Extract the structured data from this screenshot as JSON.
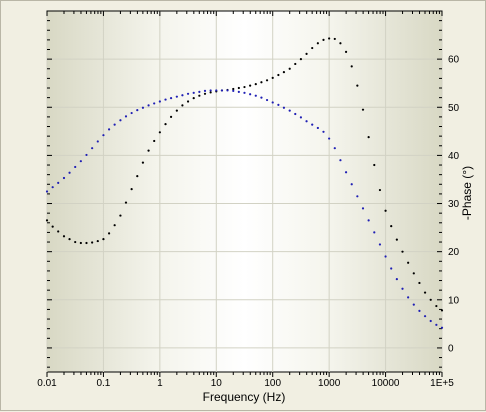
{
  "chart_data": {
    "type": "scatter",
    "title": "",
    "xlabel": "Frequency (Hz)",
    "ylabel": "-Phase (°)",
    "x_scale": "log",
    "xlim": [
      0.01,
      100000
    ],
    "ylim": [
      -5,
      70
    ],
    "x_ticks": [
      0.01,
      0.1,
      1,
      10,
      100,
      1000,
      10000,
      100000
    ],
    "x_tick_labels": [
      "0.01",
      "0.1",
      "1",
      "10",
      "100",
      "1000",
      "10000",
      "1E+5"
    ],
    "y_ticks": [
      0,
      10,
      20,
      30,
      40,
      50,
      60
    ],
    "y_tick_labels": [
      "0",
      "10",
      "20",
      "30",
      "40",
      "50",
      "60"
    ],
    "y_axis_side": "right",
    "grid": true,
    "legend": "none",
    "series": [
      {
        "color": "#000000",
        "points": [
          [
            0.01,
            26.5
          ],
          [
            0.0126,
            25.2
          ],
          [
            0.0158,
            24.2
          ],
          [
            0.02,
            23.2
          ],
          [
            0.0251,
            22.6
          ],
          [
            0.0316,
            22.0
          ],
          [
            0.0398,
            21.8
          ],
          [
            0.0501,
            21.8
          ],
          [
            0.0631,
            21.9
          ],
          [
            0.0794,
            22.2
          ],
          [
            0.1,
            22.6
          ],
          [
            0.126,
            23.8
          ],
          [
            0.158,
            25.5
          ],
          [
            0.2,
            27.5
          ],
          [
            0.251,
            30.2
          ],
          [
            0.316,
            33.0
          ],
          [
            0.398,
            35.7
          ],
          [
            0.501,
            38.5
          ],
          [
            0.631,
            41.0
          ],
          [
            0.794,
            43.0
          ],
          [
            1,
            44.8
          ],
          [
            1.26,
            46.5
          ],
          [
            1.58,
            48.0
          ],
          [
            2,
            49.3
          ],
          [
            2.51,
            50.4
          ],
          [
            3.16,
            51.2
          ],
          [
            3.98,
            51.9
          ],
          [
            5.01,
            52.4
          ],
          [
            6.31,
            52.8
          ],
          [
            7.94,
            53.1
          ],
          [
            10,
            53.3
          ],
          [
            12.6,
            53.5
          ],
          [
            15.8,
            53.6
          ],
          [
            20,
            53.8
          ],
          [
            25.1,
            54.0
          ],
          [
            31.6,
            54.2
          ],
          [
            39.8,
            54.5
          ],
          [
            50.1,
            54.8
          ],
          [
            63.1,
            55.2
          ],
          [
            79.4,
            55.6
          ],
          [
            100,
            56.1
          ],
          [
            126,
            56.7
          ],
          [
            158,
            57.3
          ],
          [
            200,
            58.0
          ],
          [
            251,
            59.0
          ],
          [
            316,
            60.0
          ],
          [
            398,
            61.1
          ],
          [
            501,
            62.3
          ],
          [
            631,
            63.3
          ],
          [
            794,
            64.0
          ],
          [
            1000,
            64.3
          ],
          [
            1259,
            64.2
          ],
          [
            1585,
            63.3
          ],
          [
            1995,
            61.5
          ],
          [
            2512,
            58.5
          ],
          [
            3162,
            54.5
          ],
          [
            3981,
            49.5
          ],
          [
            5012,
            43.8
          ],
          [
            6310,
            38.0
          ],
          [
            7943,
            32.8
          ],
          [
            10000,
            28.5
          ],
          [
            12589,
            25.3
          ],
          [
            15849,
            22.5
          ],
          [
            19953,
            20.0
          ],
          [
            25119,
            17.7
          ],
          [
            31623,
            15.5
          ],
          [
            39811,
            13.5
          ],
          [
            50119,
            11.5
          ],
          [
            63096,
            10.0
          ],
          [
            79433,
            8.7
          ],
          [
            100000,
            7.8
          ]
        ]
      },
      {
        "color": "#1f1fb4",
        "points": [
          [
            0.01,
            32.5
          ],
          [
            0.0126,
            33.4
          ],
          [
            0.0158,
            34.3
          ],
          [
            0.02,
            35.3
          ],
          [
            0.0251,
            36.4
          ],
          [
            0.0316,
            37.6
          ],
          [
            0.0398,
            38.8
          ],
          [
            0.0501,
            40.1
          ],
          [
            0.0631,
            41.5
          ],
          [
            0.0794,
            42.9
          ],
          [
            0.1,
            44.2
          ],
          [
            0.126,
            45.4
          ],
          [
            0.158,
            46.4
          ],
          [
            0.2,
            47.3
          ],
          [
            0.251,
            48.1
          ],
          [
            0.316,
            48.8
          ],
          [
            0.398,
            49.4
          ],
          [
            0.501,
            49.9
          ],
          [
            0.631,
            50.4
          ],
          [
            0.794,
            50.8
          ],
          [
            1,
            51.2
          ],
          [
            1.26,
            51.6
          ],
          [
            1.58,
            51.9
          ],
          [
            2,
            52.2
          ],
          [
            2.51,
            52.5
          ],
          [
            3.16,
            52.8
          ],
          [
            3.98,
            53.0
          ],
          [
            5.01,
            53.2
          ],
          [
            6.31,
            53.4
          ],
          [
            7.94,
            53.5
          ],
          [
            10,
            53.5
          ],
          [
            12.6,
            53.5
          ],
          [
            15.8,
            53.5
          ],
          [
            20,
            53.4
          ],
          [
            25.1,
            53.2
          ],
          [
            31.6,
            53.0
          ],
          [
            39.8,
            52.7
          ],
          [
            50.1,
            52.4
          ],
          [
            63.1,
            52.0
          ],
          [
            79.4,
            51.5
          ],
          [
            100,
            51.0
          ],
          [
            126,
            50.5
          ],
          [
            158,
            49.9
          ],
          [
            200,
            49.3
          ],
          [
            251,
            48.6
          ],
          [
            316,
            47.9
          ],
          [
            398,
            47.1
          ],
          [
            501,
            46.4
          ],
          [
            631,
            45.7
          ],
          [
            794,
            44.9
          ],
          [
            1000,
            43.5
          ],
          [
            1259,
            41.5
          ],
          [
            1585,
            39.0
          ],
          [
            1995,
            36.5
          ],
          [
            2512,
            34.0
          ],
          [
            3162,
            31.5
          ],
          [
            3981,
            29.0
          ],
          [
            5012,
            26.5
          ],
          [
            6310,
            24.0
          ],
          [
            7943,
            21.5
          ],
          [
            10000,
            19.0
          ],
          [
            12589,
            16.5
          ],
          [
            15849,
            14.3
          ],
          [
            19953,
            12.3
          ],
          [
            25119,
            10.5
          ],
          [
            31623,
            9.0
          ],
          [
            39811,
            7.7
          ],
          [
            50119,
            6.6
          ],
          [
            63096,
            5.6
          ],
          [
            79433,
            4.8
          ],
          [
            100000,
            4.2
          ]
        ]
      }
    ]
  }
}
